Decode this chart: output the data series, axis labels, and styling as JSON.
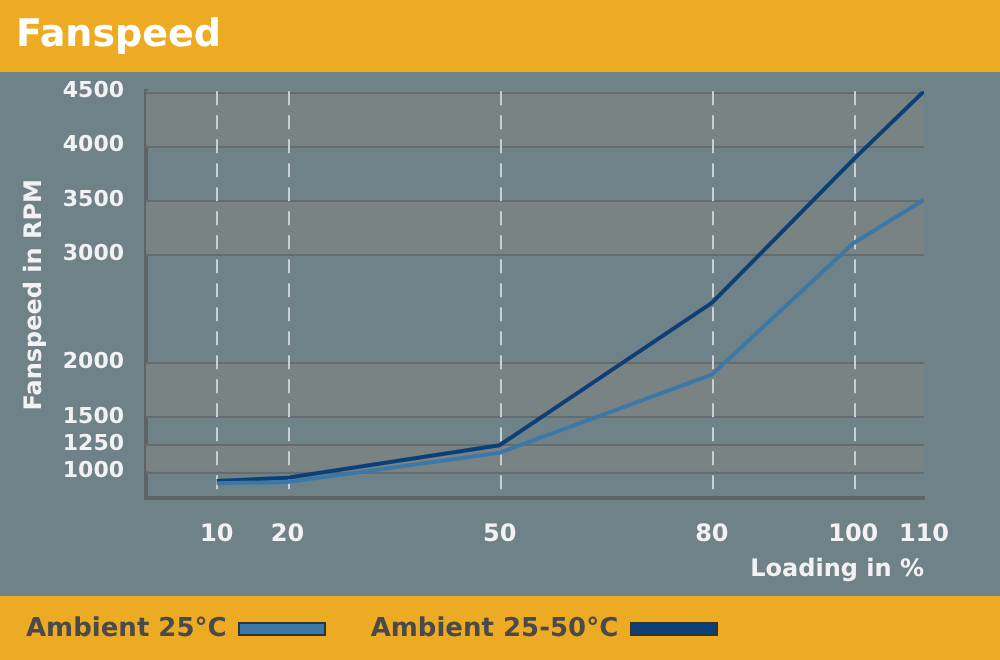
{
  "chart_data": {
    "type": "line",
    "title": "Fanspeed",
    "xlabel": "Loading in %",
    "ylabel": "Fanspeed in RPM",
    "x": [
      10,
      20,
      50,
      80,
      100,
      110
    ],
    "series": [
      {
        "name": "Ambient 25°C",
        "color": "#3b78a8",
        "values": [
          890,
          900,
          1170,
          1890,
          3100,
          3500
        ]
      },
      {
        "name": "Ambient 25-50°C",
        "color": "#0b3f78",
        "values": [
          910,
          940,
          1240,
          2550,
          3870,
          4500
        ]
      }
    ],
    "xlim": [
      0,
      110
    ],
    "xticks": [
      10,
      20,
      50,
      80,
      100,
      110
    ],
    "ylim": [
      750,
      4500
    ],
    "yticks": [
      1000,
      1250,
      1500,
      2000,
      3000,
      3500,
      4000,
      4500
    ],
    "grid": true,
    "legend": "bottom",
    "marker": "none",
    "line_style": "solid"
  }
}
